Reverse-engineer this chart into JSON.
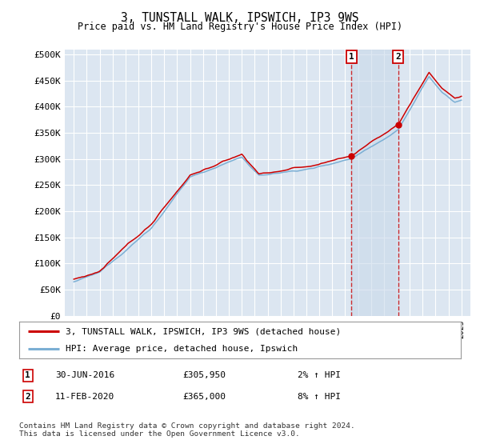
{
  "title": "3, TUNSTALL WALK, IPSWICH, IP3 9WS",
  "subtitle": "Price paid vs. HM Land Registry's House Price Index (HPI)",
  "ylabel_ticks": [
    "£0",
    "£50K",
    "£100K",
    "£150K",
    "£200K",
    "£250K",
    "£300K",
    "£350K",
    "£400K",
    "£450K",
    "£500K"
  ],
  "background_color": "#ffffff",
  "plot_bg_color": "#dce6f1",
  "grid_color": "#ffffff",
  "legend1_label": "3, TUNSTALL WALK, IPSWICH, IP3 9WS (detached house)",
  "legend2_label": "HPI: Average price, detached house, Ipswich",
  "annotation1": {
    "num": "1",
    "date": "30-JUN-2016",
    "price": "£305,950",
    "pct": "2% ↑ HPI",
    "x": 2016.5
  },
  "annotation2": {
    "num": "2",
    "date": "11-FEB-2020",
    "price": "£365,000",
    "pct": "8% ↑ HPI",
    "x": 2020.1
  },
  "footer": "Contains HM Land Registry data © Crown copyright and database right 2024.\nThis data is licensed under the Open Government Licence v3.0.",
  "hpi_color": "#7bafd4",
  "price_color": "#cc0000",
  "shade_color": "#c9d9ea"
}
